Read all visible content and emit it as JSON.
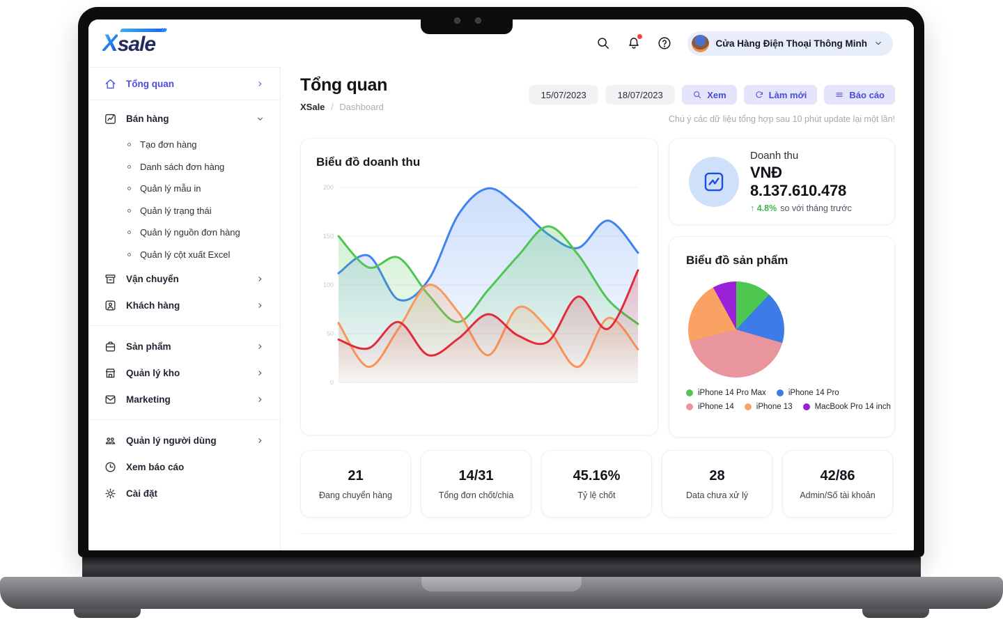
{
  "brand": {
    "name_x": "X",
    "name_rest": "sale",
    "marks": "»"
  },
  "topbar": {
    "account": "Cửa Hàng Điện Thoại Thông Minh",
    "help_glyph": "?"
  },
  "sidebar": {
    "sections": [
      {
        "items": [
          {
            "label": "Tổng quan",
            "icon": "home-icon",
            "active": true,
            "chevron": "right"
          }
        ]
      },
      {
        "items": [
          {
            "label": "Bán hàng",
            "icon": "chart-icon",
            "chevron": "down",
            "children": [
              "Tạo đơn hàng",
              "Danh sách đơn hàng",
              "Quản lý mẫu in",
              "Quản lý trạng thái",
              "Quản lý nguồn đơn hàng",
              "Quản lý cột xuất Excel"
            ]
          },
          {
            "label": "Vận chuyển",
            "icon": "shipping-icon",
            "chevron": "right"
          },
          {
            "label": "Khách hàng",
            "icon": "customer-icon",
            "chevron": "right"
          }
        ]
      },
      {
        "items": [
          {
            "label": "Sản phẩm",
            "icon": "product-icon",
            "chevron": "right"
          },
          {
            "label": "Quản lý kho",
            "icon": "warehouse-icon",
            "chevron": "right"
          },
          {
            "label": "Marketing",
            "icon": "mail-icon",
            "chevron": "right"
          }
        ]
      },
      {
        "items": [
          {
            "label": "Quản lý người dùng",
            "icon": "users-icon",
            "chevron": "right"
          },
          {
            "label": "Xem báo cáo",
            "icon": "report-icon",
            "chevron": null
          },
          {
            "label": "Cài đặt",
            "icon": "settings-icon",
            "chevron": null
          }
        ]
      }
    ]
  },
  "page": {
    "title": "Tổng quan",
    "breadcrumb": {
      "root": "XSale",
      "sep": "/",
      "current": "Dashboard"
    },
    "date_from": "15/07/2023",
    "date_to": "18/07/2023",
    "actions": [
      {
        "label": "Xem",
        "icon": "search-icon"
      },
      {
        "label": "Làm mới",
        "icon": "refresh-icon"
      },
      {
        "label": "Báo cáo",
        "icon": "menu-icon"
      }
    ],
    "note": "Chú ý các dữ liệu tổng hợp sau 10 phút update lại một lần!"
  },
  "revenue_card": {
    "label": "Doanh thu",
    "value": "VNĐ 8.137.610.478",
    "delta": "↑ 4.8%",
    "delta_note": "so với tháng trước",
    "delta_color": "#3fb54a",
    "icon_bg": "#cfe0fb",
    "icon_color": "#1d4fd8"
  },
  "chart_data": [
    {
      "type": "area",
      "title": "Biểu đồ doanh thu",
      "ylim": [
        0,
        200
      ],
      "yticks": [
        0,
        50,
        100,
        150,
        200
      ],
      "grid": "horizontal",
      "x_labels": [],
      "legend_position": "none",
      "series": [
        {
          "name": "series-blue",
          "color": "#3f82f0",
          "values": [
            112,
            130,
            85,
            105,
            172,
            199,
            180,
            152,
            138,
            166,
            133
          ]
        },
        {
          "name": "series-green",
          "color": "#4fc553",
          "values": [
            150,
            118,
            128,
            90,
            62,
            95,
            130,
            160,
            131,
            85,
            60
          ]
        },
        {
          "name": "series-orange",
          "color": "#f8995b",
          "values": [
            61,
            16,
            55,
            100,
            72,
            28,
            77,
            55,
            16,
            66,
            34
          ]
        },
        {
          "name": "series-red",
          "color": "#e02b3d",
          "values": [
            44,
            35,
            62,
            28,
            45,
            70,
            48,
            42,
            88,
            55,
            115
          ]
        }
      ]
    },
    {
      "type": "pie",
      "title": "Biểu đồ sản phẩm",
      "legend_position": "bottom",
      "slices": [
        {
          "label": "iPhone 14 Pro Max",
          "color": "#4dc74f",
          "pct": 12
        },
        {
          "label": "iPhone 14 Pro",
          "color": "#3d7ce8",
          "pct": 17.5
        },
        {
          "label": "iPhone 14",
          "color": "#e9959d",
          "pct": 41.5
        },
        {
          "label": "iPhone 13",
          "color": "#f9a263",
          "pct": 21
        },
        {
          "label": "MacBook Pro 14 inch",
          "color": "#9b21d8",
          "pct": 8
        }
      ]
    }
  ],
  "stats": [
    {
      "value": "21",
      "label": "Đang chuyển hàng"
    },
    {
      "value": "14/31",
      "label": "Tổng đơn chốt/chia"
    },
    {
      "value": "45.16%",
      "label": "Tỷ lệ chốt"
    },
    {
      "value": "28",
      "label": "Data chưa xử lý"
    },
    {
      "value": "42/86",
      "label": "Admin/Số tài khoản"
    }
  ],
  "colors": {
    "accent": "#4a4be0",
    "action_bg": "#e4e5fb",
    "action_text": "#4a4bd6",
    "notification": "#fa3e3e"
  }
}
